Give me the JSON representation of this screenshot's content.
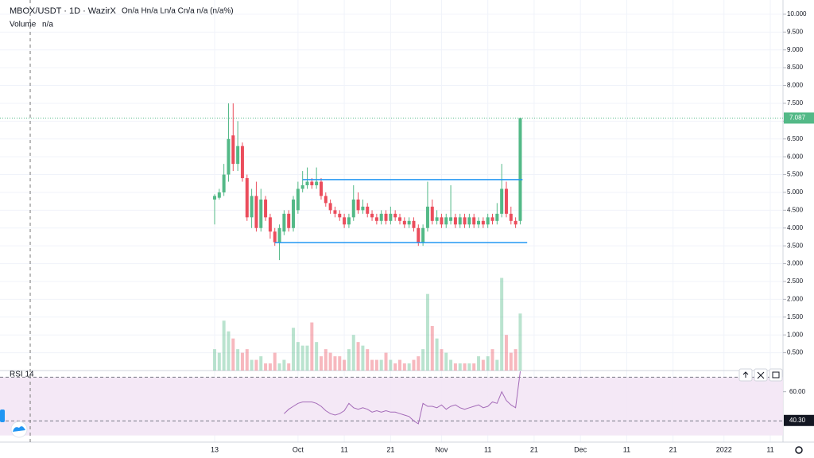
{
  "chart_data": {
    "type": "candlestick",
    "title": "MBOX/USDT · 1D · WazirX",
    "legend_values": "On/a Hn/a Ln/a Cn/a n/a (n/a%)",
    "volume_label": "Volume",
    "volume_value": "n/a",
    "rsi_label": "RSI 14",
    "up_color": "#53b987",
    "down_color": "#eb4d5c",
    "open": [
      4.8,
      4.85,
      5.0,
      5.5,
      6.6,
      5.8,
      6.3,
      5.4,
      4.3,
      4.9,
      4.0,
      4.8,
      4.3,
      3.9,
      3.6,
      3.9,
      4.4,
      4.0,
      4.5,
      5.1,
      5.2,
      5.3,
      5.2,
      5.3,
      4.9,
      4.7,
      4.5,
      4.4,
      4.3,
      4.1,
      4.3,
      4.8,
      4.5,
      4.6,
      4.4,
      4.3,
      4.2,
      4.4,
      4.2,
      4.4,
      4.3,
      4.2,
      4.1,
      4.2,
      4.0,
      3.6,
      4.0,
      4.6,
      4.2,
      4.3,
      4.1,
      4.2,
      4.3,
      4.1,
      4.3,
      4.1,
      4.3,
      4.1,
      4.2,
      4.1,
      4.3,
      4.2,
      4.4,
      5.1,
      4.4,
      4.2,
      4.2
    ],
    "high": [
      4.95,
      5.1,
      5.8,
      7.5,
      7.5,
      7.0,
      6.4,
      5.5,
      5.1,
      5.3,
      5.1,
      4.9,
      4.4,
      4.0,
      4.1,
      4.5,
      4.5,
      4.9,
      5.3,
      5.6,
      5.7,
      5.4,
      5.7,
      5.4,
      5.0,
      4.8,
      4.6,
      4.5,
      4.4,
      4.4,
      5.2,
      5.0,
      4.8,
      4.7,
      4.5,
      4.4,
      4.5,
      4.5,
      4.6,
      4.5,
      4.4,
      4.3,
      4.3,
      4.3,
      4.1,
      4.1,
      5.3,
      4.8,
      4.5,
      4.4,
      4.4,
      5.2,
      4.4,
      4.4,
      4.4,
      4.4,
      4.4,
      4.3,
      4.3,
      4.4,
      4.4,
      4.7,
      5.8,
      5.3,
      4.6,
      4.3,
      7.1
    ],
    "low": [
      4.1,
      4.8,
      4.9,
      5.3,
      5.6,
      5.6,
      5.3,
      4.2,
      4.0,
      3.9,
      3.9,
      4.2,
      3.7,
      3.5,
      3.1,
      3.8,
      3.9,
      3.9,
      4.4,
      5.0,
      5.1,
      5.1,
      5.1,
      4.8,
      4.6,
      4.4,
      4.3,
      4.2,
      4.0,
      4.0,
      4.2,
      4.4,
      4.4,
      4.3,
      4.2,
      4.1,
      4.1,
      4.1,
      4.1,
      4.2,
      4.1,
      4.0,
      4.0,
      3.9,
      3.5,
      3.5,
      3.9,
      4.1,
      4.1,
      4.0,
      4.0,
      4.1,
      4.0,
      4.0,
      4.0,
      4.0,
      4.0,
      4.0,
      4.0,
      4.0,
      4.1,
      4.1,
      4.3,
      4.3,
      4.1,
      4.0,
      4.1
    ],
    "close": [
      4.9,
      5.0,
      5.5,
      6.5,
      5.8,
      6.3,
      5.4,
      4.3,
      4.9,
      4.0,
      4.8,
      4.3,
      3.9,
      3.6,
      4.0,
      4.4,
      4.0,
      4.8,
      5.1,
      5.2,
      5.3,
      5.2,
      5.3,
      4.9,
      4.7,
      4.5,
      4.4,
      4.3,
      4.1,
      4.3,
      4.8,
      4.5,
      4.6,
      4.4,
      4.3,
      4.2,
      4.4,
      4.2,
      4.4,
      4.3,
      4.2,
      4.1,
      4.2,
      4.0,
      3.6,
      4.0,
      4.6,
      4.2,
      4.3,
      4.1,
      4.3,
      4.3,
      4.1,
      4.3,
      4.1,
      4.3,
      4.1,
      4.2,
      4.1,
      4.3,
      4.2,
      4.4,
      5.1,
      4.4,
      4.2,
      4.1,
      7.087
    ],
    "volume": [
      0.6,
      0.5,
      1.4,
      1.1,
      0.9,
      0.6,
      0.5,
      0.6,
      0.3,
      0.3,
      0.4,
      0.2,
      0.2,
      0.5,
      0.2,
      0.3,
      0.2,
      1.2,
      0.8,
      0.7,
      0.7,
      1.35,
      0.8,
      0.4,
      0.6,
      0.5,
      0.4,
      0.4,
      0.3,
      0.6,
      1.0,
      0.8,
      0.7,
      0.6,
      0.3,
      0.3,
      0.3,
      0.5,
      0.3,
      0.2,
      0.3,
      0.2,
      0.2,
      0.3,
      0.4,
      0.6,
      2.15,
      1.25,
      0.9,
      0.6,
      0.5,
      0.3,
      0.2,
      0.2,
      0.2,
      0.2,
      0.2,
      0.4,
      0.3,
      0.4,
      0.6,
      0.3,
      2.6,
      1.0,
      0.5,
      0.6,
      1.6
    ],
    "rsi": [
      null,
      null,
      null,
      null,
      null,
      null,
      null,
      null,
      null,
      null,
      null,
      null,
      null,
      null,
      null,
      45,
      48,
      50,
      52,
      53,
      53,
      53,
      52,
      50,
      47,
      45,
      44,
      45,
      47,
      52,
      49,
      48,
      49,
      48,
      46,
      47,
      46,
      47,
      46,
      46,
      45,
      44,
      43,
      40,
      38,
      52,
      50,
      50,
      49,
      51,
      48,
      50,
      51,
      49,
      48,
      49,
      50,
      51,
      49,
      50,
      53,
      52,
      60,
      54,
      51,
      49,
      74
    ],
    "rsi_color": "#a46bb8",
    "ylim": [
      0.0,
      10.4
    ],
    "yticks": [
      {
        "value": 0.5,
        "label": "0.500"
      },
      {
        "value": 1.0,
        "label": "1.000"
      },
      {
        "value": 1.5,
        "label": "1.500"
      },
      {
        "value": 2.0,
        "label": "2.000"
      },
      {
        "value": 2.5,
        "label": "2.500"
      },
      {
        "value": 3.0,
        "label": "3.000"
      },
      {
        "value": 3.5,
        "label": "3.500"
      },
      {
        "value": 4.0,
        "label": "4.000"
      },
      {
        "value": 4.5,
        "label": "4.500"
      },
      {
        "value": 5.0,
        "label": "5.000"
      },
      {
        "value": 5.5,
        "label": "5.500"
      },
      {
        "value": 6.0,
        "label": "6.000"
      },
      {
        "value": 6.5,
        "label": "6.500"
      },
      {
        "value": 7.0,
        "label": "7.000"
      },
      {
        "value": 7.5,
        "label": "7.500"
      },
      {
        "value": 8.0,
        "label": "8.000"
      },
      {
        "value": 8.5,
        "label": "8.500"
      },
      {
        "value": 9.0,
        "label": "9.000"
      },
      {
        "value": 9.5,
        "label": "9.500"
      },
      {
        "value": 10.0,
        "label": "10.000"
      }
    ],
    "xticks": [
      {
        "value": 0,
        "label": "13"
      },
      {
        "value": 18,
        "label": "Oct"
      },
      {
        "value": 28,
        "label": "11"
      },
      {
        "value": 38,
        "label": "21"
      },
      {
        "value": 49,
        "label": "Nov"
      },
      {
        "value": 59,
        "label": "11"
      },
      {
        "value": 69,
        "label": "21"
      },
      {
        "value": 79,
        "label": "Dec"
      },
      {
        "value": 89,
        "label": "11"
      },
      {
        "value": 99,
        "label": "21"
      },
      {
        "value": 110,
        "label": "2022"
      },
      {
        "value": 120,
        "label": "11"
      }
    ],
    "levels": [
      {
        "value": 5.36,
        "from": 19,
        "to": 66.5,
        "color": "#2196f3"
      },
      {
        "value": 3.59,
        "from": 13,
        "to": 67.5,
        "color": "#2196f3"
      }
    ],
    "rsi_ylim": [
      26,
      74
    ],
    "rsi_yticks": [
      {
        "value": 60,
        "label": "60.00"
      }
    ],
    "rsi_bands": [
      70,
      40
    ],
    "rsi_marker": {
      "value": 40.3,
      "label": "40.30"
    }
  }
}
